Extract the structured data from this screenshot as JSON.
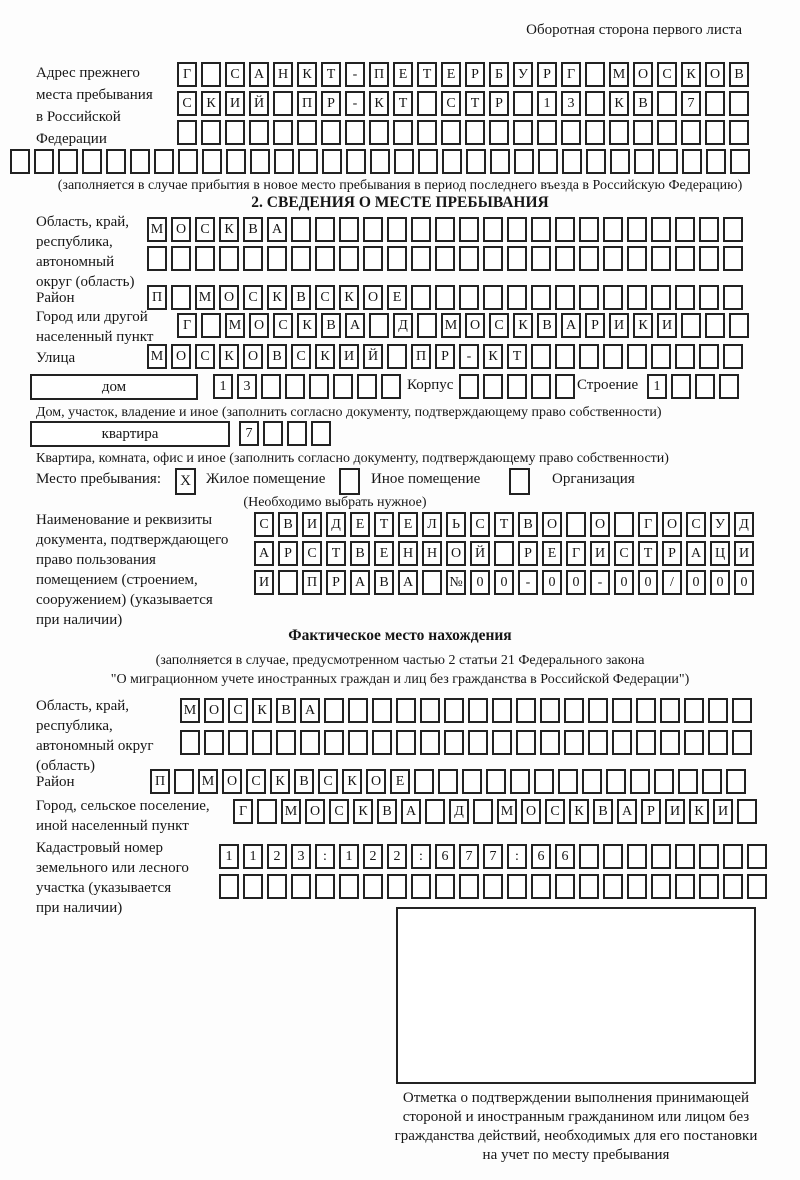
{
  "header": {
    "note": "Оборотная сторона первого листа"
  },
  "prev_address": {
    "label": "Адрес прежнего\nместа пребывания\nв Российской\nФедерации",
    "row1": "Г САНКТ-ПЕТЕРБУРГ МОСКОВ",
    "row2": "СКИЙ ПР-КТ СТР 13 КВ 7",
    "row3": "",
    "row4": "",
    "note": "(заполняется в случае прибытия в новое место пребывания в период последнего въезда в Российскую Федерацию)"
  },
  "section2": {
    "title": "2. СВЕДЕНИЯ О МЕСТЕ ПРЕБЫВАНИЯ",
    "oblast": {
      "label": "Область, край,\nреспублика,\nавтономный\nокруг (область)",
      "row1": "МОСКВА",
      "row2": ""
    },
    "raion": {
      "label": "Район",
      "row1": "П МОСКВСКОЕ"
    },
    "gorod": {
      "label": "Город или другой\nнаселенный пункт",
      "row1": "Г МОСКВА Д МОСКВАРИКИ"
    },
    "ulitsa": {
      "label": "Улица",
      "row1": "МОСКОВСКИЙ ПР-КТ"
    },
    "dom": {
      "box_label": "дом",
      "cells": "13",
      "korpus_label": "Корпус",
      "korpus_cells": "",
      "stroenie_label": "Строение",
      "stroenie_cells": "1",
      "note": "Дом, участок, владение и иное (заполнить согласно документу, подтверждающему право собственности)"
    },
    "kvartira": {
      "box_label": "квартира",
      "cells": "7",
      "note": "Квартира, комната, офис и иное (заполнить согласно документу, подтверждающему право собственности)"
    },
    "mesto": {
      "label": "Место пребывания:",
      "mark1": "X",
      "option1": "Жилое помещение",
      "mark2": "",
      "option2": "Иное помещение",
      "mark3": "",
      "option3": "Организация",
      "note": "(Необходимо выбрать нужное)"
    },
    "document": {
      "label": "Наименование и реквизиты\nдокумента, подтверждающего\nправо пользования\nпомещением (строением,\nсооружением) (указывается\nпри наличии)",
      "row1": "СВИДЕТЕЛЬСТВО О ГОСУД",
      "row2": "АРСТВЕННОЙ РЕГИСТРАЦИ",
      "row3": "И ПРАВА №00-00-00/000"
    }
  },
  "fakt": {
    "title": "Фактическое место нахождения",
    "note1": "(заполняется в случае, предусмотренном частью 2 статьи 21 Федерального закона",
    "note2": "\"О миграционном учете иностранных граждан и лиц без гражданства в Российской Федерации\")",
    "oblast": {
      "label": "Область, край,\nреспублика,\nавтономный округ\n(область)",
      "row1": "МОСКВА",
      "row2": ""
    },
    "raion": {
      "label": "Район",
      "row1": "П МОСКВСКОЕ"
    },
    "gorod": {
      "label": "Город, сельское поселение,\nиной населенный пункт",
      "row1": "Г МОСКВА Д МОСКВАРИКИ"
    },
    "kadastr": {
      "label": "Кадастровый номер\nземельного или лесного\nучастка (указывается\nпри наличии)",
      "row1": "1123:122:677:66",
      "row2": ""
    }
  },
  "stamp": {
    "caption": "Отметка о подтверждении выполнения принимающей\nстороной и иностранным гражданином или лицом без\nгражданства действий, необходимых для его постановки\nна учет по месту пребывания"
  }
}
